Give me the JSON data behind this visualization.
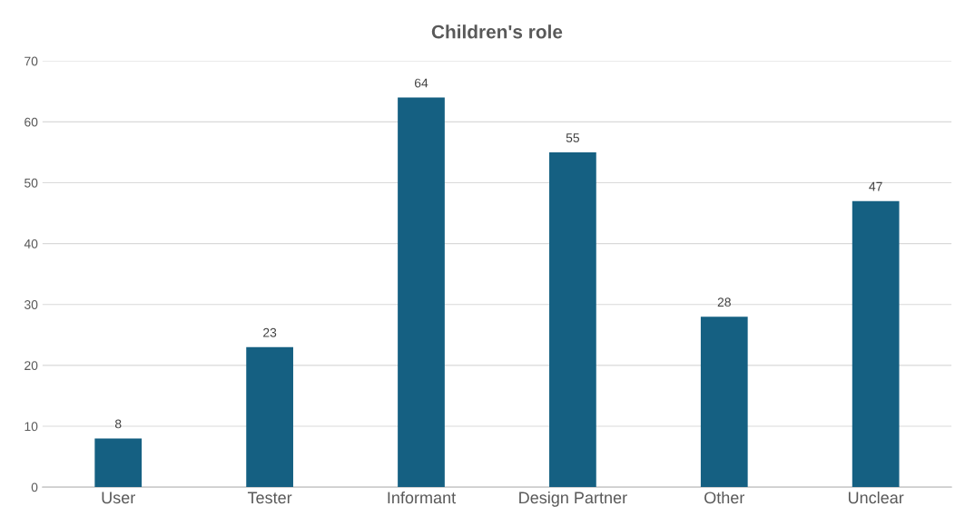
{
  "chart_data": {
    "type": "bar",
    "title": "Children's role",
    "categories": [
      "User",
      "Tester",
      "Informant",
      "Design Partner",
      "Other",
      "Unclear"
    ],
    "values": [
      8,
      23,
      64,
      55,
      28,
      47
    ],
    "color": "#156082",
    "ylim": [
      0,
      70
    ],
    "yticks": [
      0,
      10,
      20,
      30,
      40,
      50,
      60,
      70
    ],
    "grid": "y",
    "data_labels": true,
    "legend": false
  }
}
